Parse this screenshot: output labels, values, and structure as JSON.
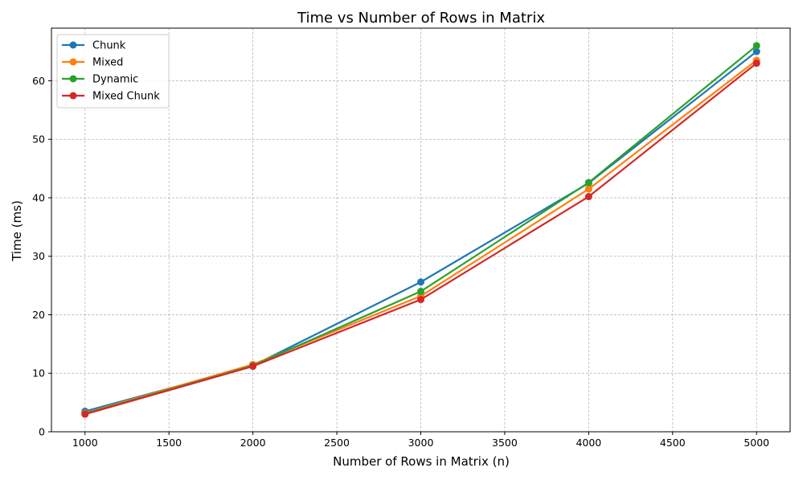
{
  "chart_data": {
    "type": "line",
    "title": "Time vs Number of Rows in Matrix",
    "xlabel": "Number of Rows in Matrix (n)",
    "ylabel": "Time (ms)",
    "x": [
      1000,
      2000,
      3000,
      4000,
      5000
    ],
    "xlim": [
      800,
      5200
    ],
    "ylim": [
      0,
      69
    ],
    "xticks": [
      1000,
      1500,
      2000,
      2500,
      3000,
      3500,
      4000,
      4500,
      5000
    ],
    "yticks": [
      0,
      10,
      20,
      30,
      40,
      50,
      60
    ],
    "grid": true,
    "legend_position": "top-left",
    "series": [
      {
        "name": "Chunk",
        "color": "#1f77b4",
        "values": [
          3.5,
          11.3,
          25.6,
          42.5,
          65.0
        ]
      },
      {
        "name": "Mixed",
        "color": "#ff7f0e",
        "values": [
          3.2,
          11.5,
          23.2,
          41.5,
          63.5
        ]
      },
      {
        "name": "Dynamic",
        "color": "#2ca02c",
        "values": [
          3.1,
          11.3,
          24.0,
          42.6,
          66.0
        ]
      },
      {
        "name": "Mixed Chunk",
        "color": "#d62728",
        "values": [
          3.0,
          11.2,
          22.6,
          40.2,
          63.0
        ]
      }
    ]
  }
}
